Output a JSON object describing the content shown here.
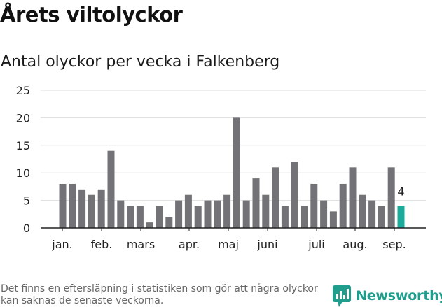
{
  "header": {
    "title": "Årets viltolyckor",
    "subtitle": "Antal olyckor per vecka i Falkenberg"
  },
  "footer": {
    "note": "Det finns en eftersläpning i statistiken som gör att några olyckor kan saknas de senaste veckorna.",
    "brand": "Newsworthy"
  },
  "colors": {
    "bar": "#737377",
    "highlight": "#1aab9b",
    "grid": "#dddddd",
    "axis": "#222222",
    "brand": "#1f9e8e"
  },
  "chart_data": {
    "type": "bar",
    "values": [
      8,
      8,
      7,
      6,
      7,
      14,
      5,
      4,
      4,
      1,
      4,
      2,
      5,
      6,
      4,
      5,
      5,
      6,
      20,
      5,
      9,
      6,
      11,
      4,
      12,
      4,
      8,
      5,
      3,
      8,
      11,
      6,
      5,
      4,
      11,
      4
    ],
    "highlight_last": true,
    "last_value_label": "4",
    "ylim": [
      0,
      25
    ],
    "y_ticks": [
      "0",
      "5",
      "10",
      "15",
      "20",
      "25"
    ],
    "month_labels": [
      "jan.",
      "feb.",
      "mars",
      "apr.",
      "maj",
      "juni",
      "juli",
      "aug.",
      "sep."
    ],
    "grid": true,
    "xlabel": "",
    "ylabel": ""
  }
}
